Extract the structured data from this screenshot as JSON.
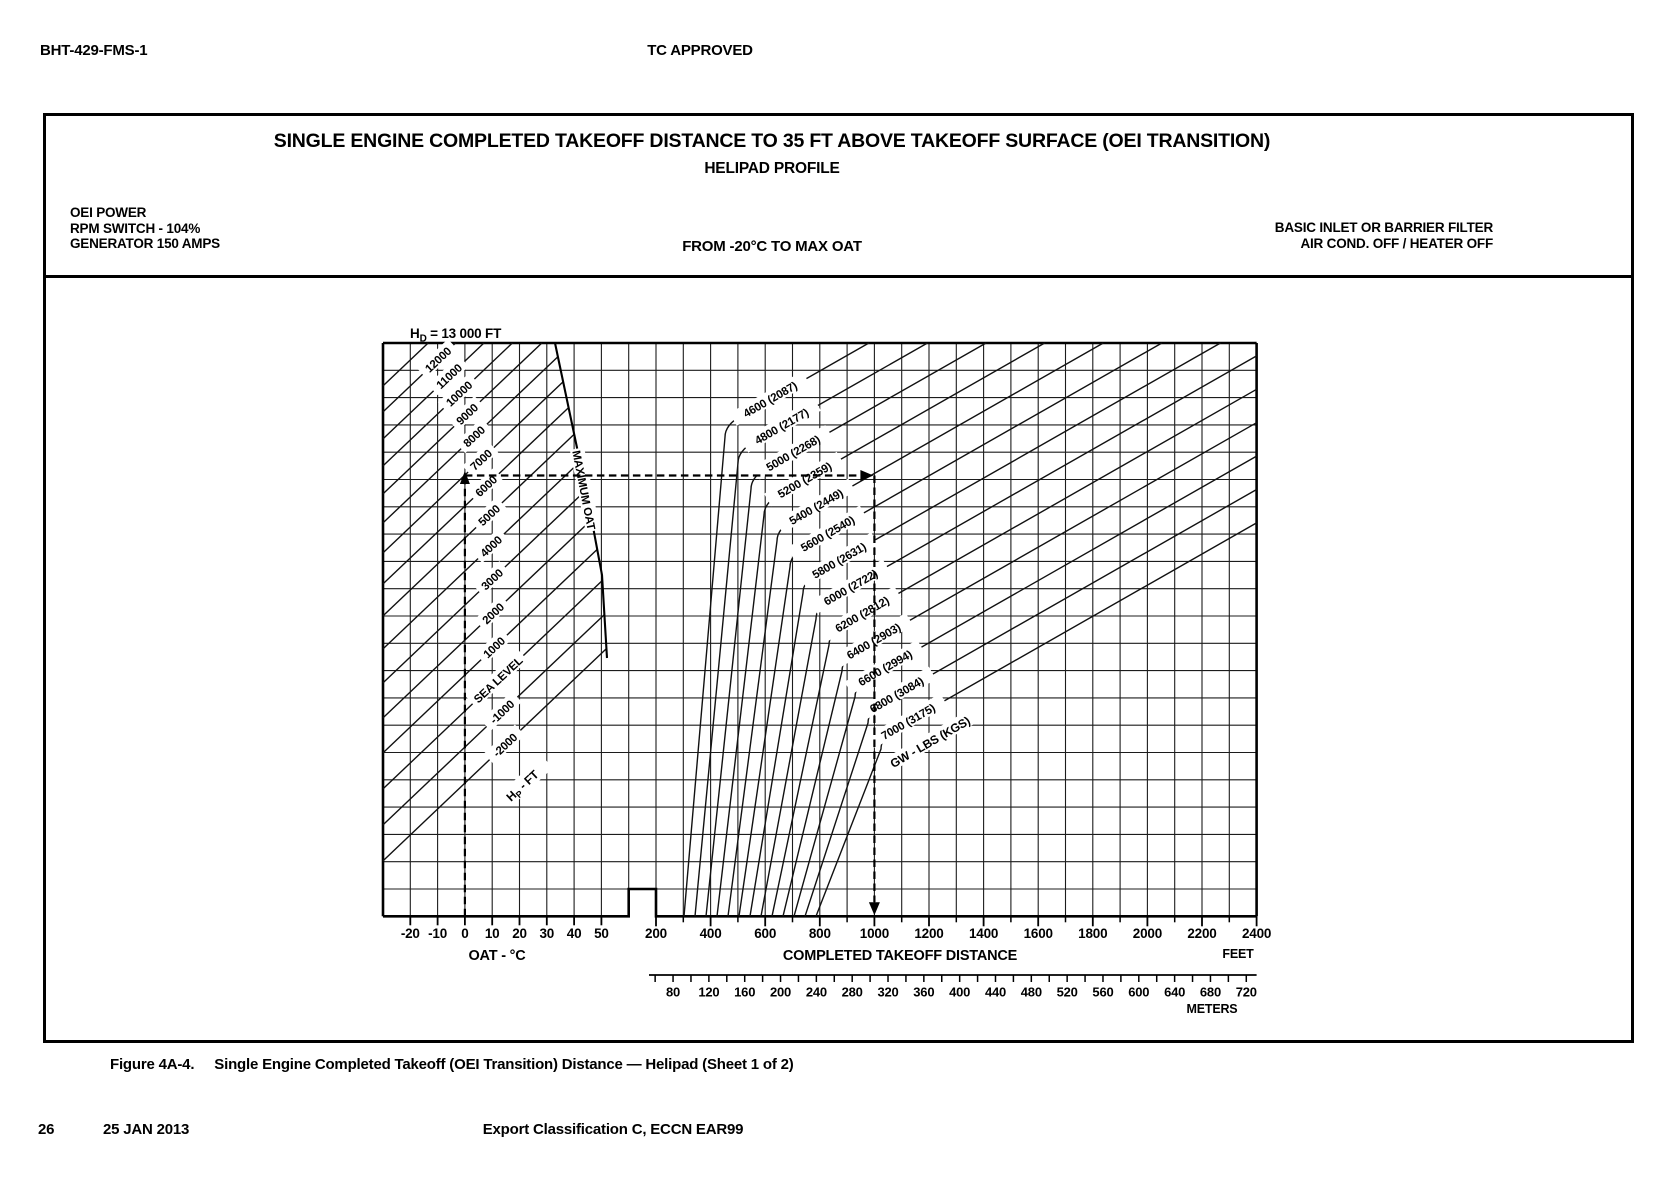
{
  "page": {
    "doc_ref": "BHT-429-FMS-1",
    "approval": "TC APPROVED",
    "caption_prefix": "Figure 4A-4.",
    "caption": "Single Engine Completed Takeoff (OEI Transition) Distance — Helipad (Sheet 1 of 2)",
    "page_number": "26",
    "date": "25 JAN 2013",
    "export_note": "Export Classification C, ECCN EAR99"
  },
  "panel": {
    "title": "SINGLE ENGINE COMPLETED TAKEOFF DISTANCE TO 35 FT ABOVE TAKEOFF SURFACE  (OEI TRANSITION)",
    "subtitle": "HELIPAD PROFILE",
    "conditions_left": [
      "OEI POWER",
      "RPM SWITCH - 104%",
      "GENERATOR 150 AMPS"
    ],
    "condition_center": "FROM -20°C TO MAX OAT",
    "conditions_right": [
      "BASIC INLET OR BARRIER FILTER",
      "AIR COND. OFF  /  HEATER OFF"
    ]
  },
  "chart_data": {
    "type": "line",
    "description": "Two-panel nomograph: OAT vs pressure altitude (left), gross weight vs completed takeoff distance (right)",
    "density_altitude_limit": {
      "prefix": "H",
      "sub": "D",
      "suffix": " = 13 000 FT"
    },
    "oat_axis": {
      "title": "OAT - °C",
      "ticks": [
        -20,
        -10,
        0,
        10,
        20,
        30,
        40,
        50
      ],
      "range": [
        -30,
        60
      ],
      "grid_step": 10
    },
    "pressure_altitude_lines": {
      "axis_label": {
        "prefix": "H",
        "sub": "P",
        "suffix": " - FT"
      },
      "lines": [
        {
          "alt": 13000,
          "label": null
        },
        {
          "alt": 12000,
          "label": "12000"
        },
        {
          "alt": 11000,
          "label": "11000"
        },
        {
          "alt": 10000,
          "label": "10000"
        },
        {
          "alt": 9000,
          "label": "9000"
        },
        {
          "alt": 8000,
          "label": "8000"
        },
        {
          "alt": 7000,
          "label": "7000"
        },
        {
          "alt": 6000,
          "label": "6000"
        },
        {
          "alt": 5000,
          "label": "5000"
        },
        {
          "alt": 4000,
          "label": "4000"
        },
        {
          "alt": 3000,
          "label": "3000"
        },
        {
          "alt": 2000,
          "label": "2000"
        },
        {
          "alt": 1000,
          "label": "1000"
        },
        {
          "alt": 0,
          "label": "SEA LEVEL"
        },
        {
          "alt": -1000,
          "label": "-1000"
        },
        {
          "alt": -2000,
          "label": "-2000"
        }
      ]
    },
    "max_oat_boundary_label": "MAXIMUM OAT",
    "gross_weight_lines": {
      "axis_label": "GW - LBS (KGS)",
      "entries": [
        {
          "lbs": 4600,
          "kgs": 2087
        },
        {
          "lbs": 4800,
          "kgs": 2177
        },
        {
          "lbs": 5000,
          "kgs": 2268
        },
        {
          "lbs": 5200,
          "kgs": 2359
        },
        {
          "lbs": 5400,
          "kgs": 2449
        },
        {
          "lbs": 5600,
          "kgs": 2540
        },
        {
          "lbs": 5800,
          "kgs": 2631
        },
        {
          "lbs": 6000,
          "kgs": 2722
        },
        {
          "lbs": 6200,
          "kgs": 2812
        },
        {
          "lbs": 6400,
          "kgs": 2903
        },
        {
          "lbs": 6600,
          "kgs": 2994
        },
        {
          "lbs": 6800,
          "kgs": 3084
        },
        {
          "lbs": 7000,
          "kgs": 3175
        }
      ]
    },
    "distance_axis": {
      "title": "COMPLETED TAKEOFF DISTANCE",
      "unit": "FEET",
      "ticks": [
        200,
        400,
        600,
        800,
        1000,
        1200,
        1400,
        1600,
        1800,
        2000,
        2200,
        2400
      ],
      "minor_step": 100,
      "range": [
        200,
        2400
      ]
    },
    "meters_axis": {
      "unit": "METERS",
      "label_start": 80,
      "label_end": 720,
      "label_step": 40,
      "tick_start": 60,
      "tick_step": 20
    },
    "example_path": {
      "oat_c": 0,
      "pressure_altitude_ft": 7000,
      "gross_weight_lbs": 5200,
      "completed_takeoff_distance_ft": 1000
    }
  }
}
